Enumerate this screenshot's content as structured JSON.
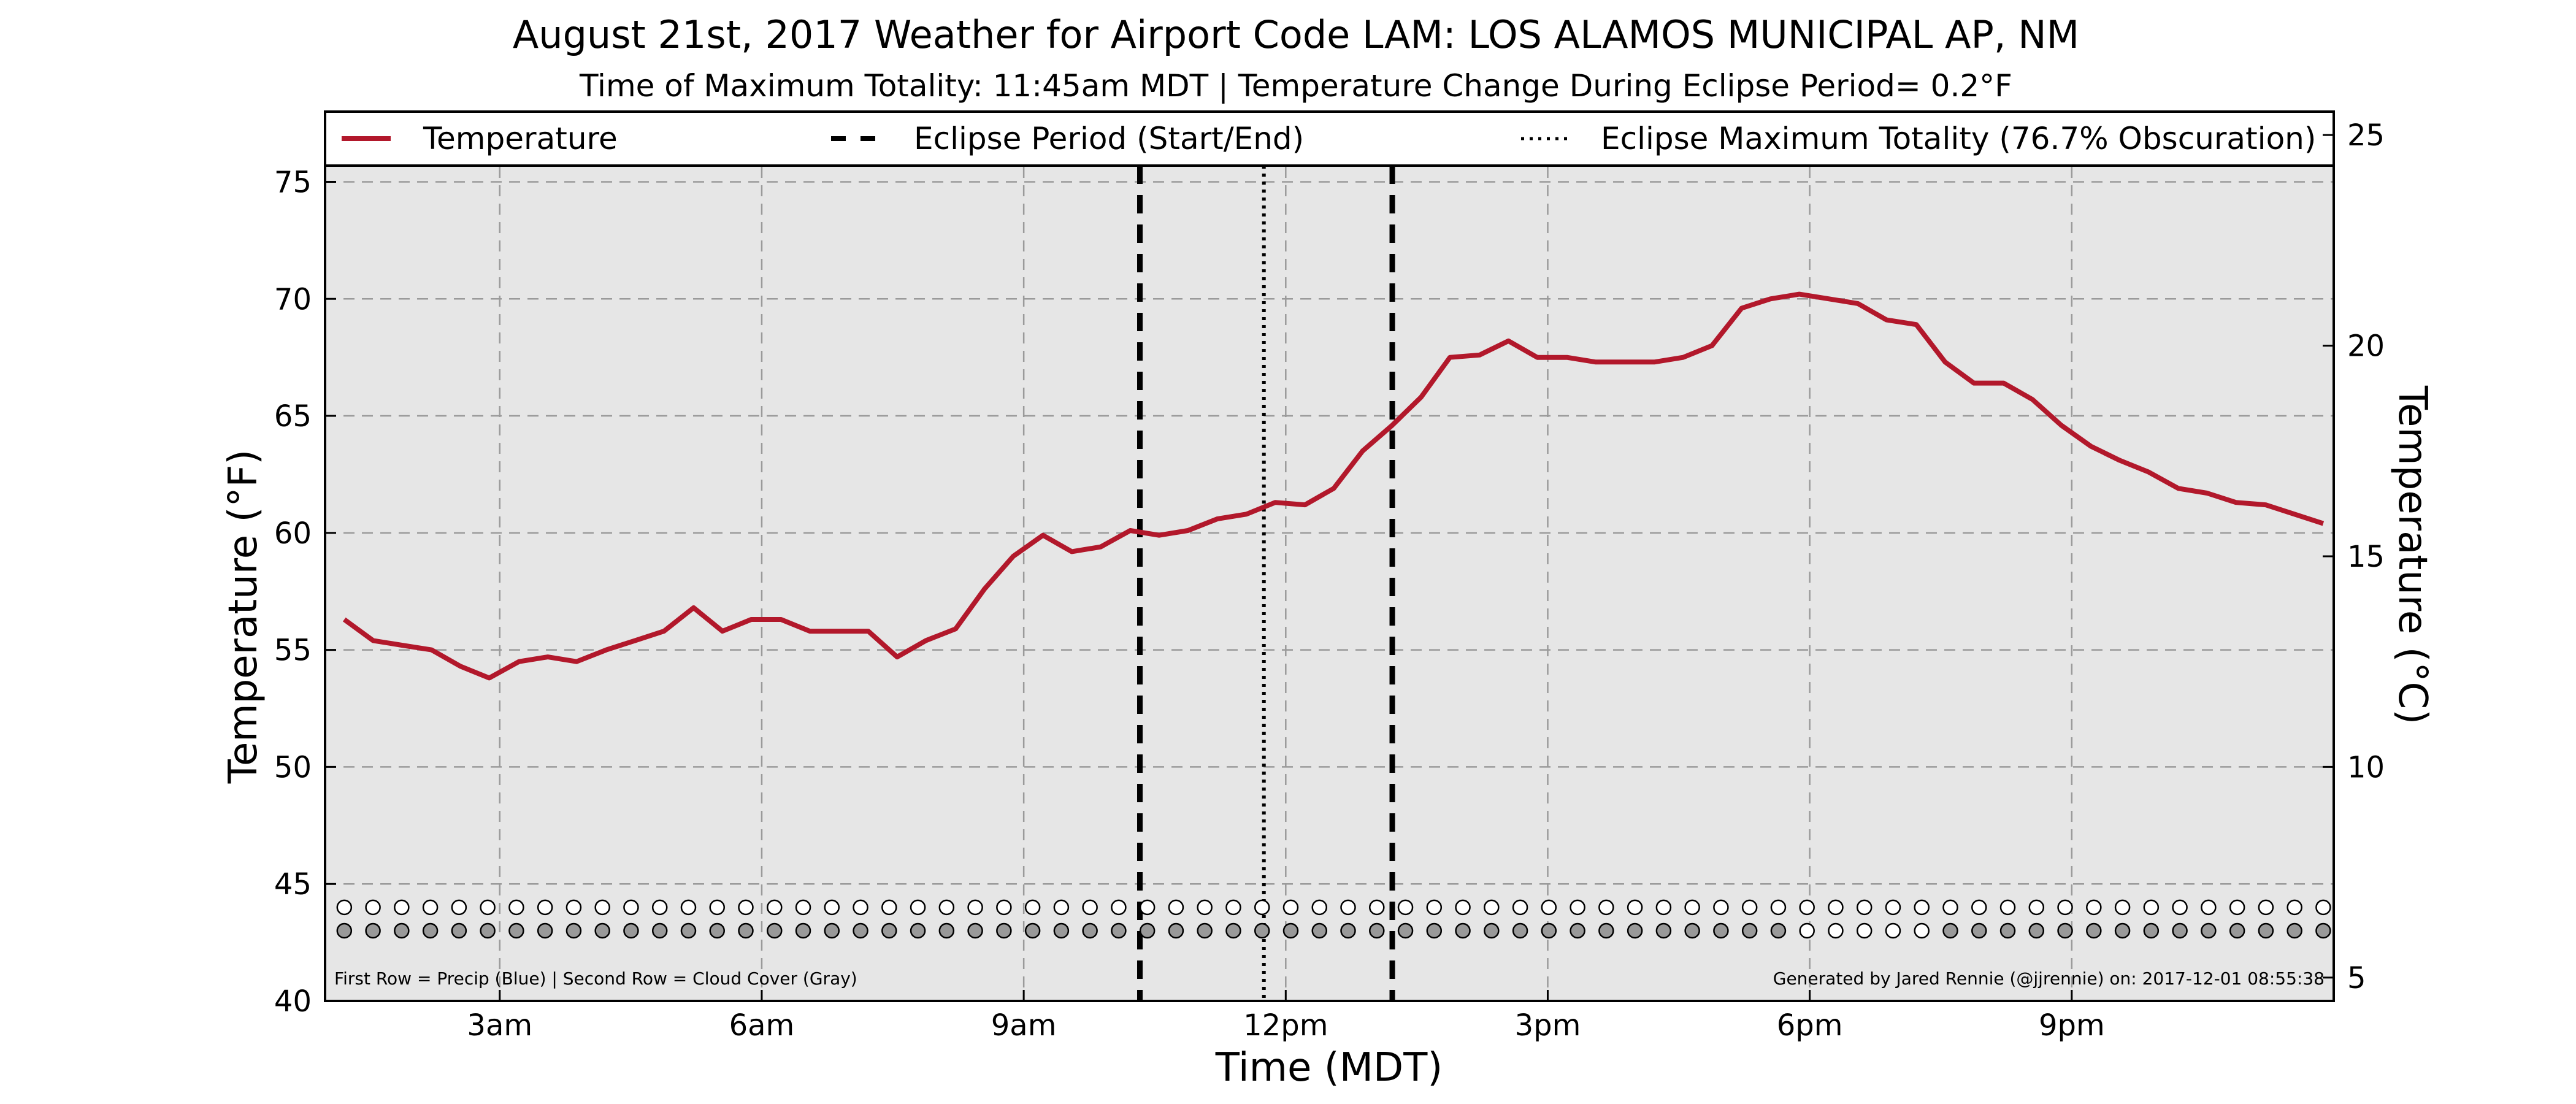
{
  "title": "August 21st, 2017 Weather for Airport Code LAM: LOS ALAMOS MUNICIPAL AP, NM",
  "subtitle": "Time of Maximum Totality: 11:45am MDT | Temperature Change During Eclipse Period= 0.2°F",
  "footer_left": "First Row = Precip (Blue) | Second Row = Cloud Cover (Gray)",
  "footer_right": "Generated by Jared Rennie (@jjrennie) on: 2017-12-01 08:55:38",
  "colors": {
    "temperature": "#b2182b",
    "plot_background": "#e6e6e6",
    "cloud_gray": "#999999",
    "precip_empty": "#ffffff"
  },
  "chart_data": {
    "type": "line",
    "xlabel": "Time (MDT)",
    "ylabel": "Temperature (°F)",
    "ylabel_right": "Temperature (°C)",
    "xlim": [
      1.0,
      24.0
    ],
    "ylim": [
      40,
      78
    ],
    "x_ticks": [
      {
        "x": 3,
        "label": "3am"
      },
      {
        "x": 6,
        "label": "6am"
      },
      {
        "x": 9,
        "label": "9am"
      },
      {
        "x": 12,
        "label": "12pm"
      },
      {
        "x": 15,
        "label": "3pm"
      },
      {
        "x": 18,
        "label": "6pm"
      },
      {
        "x": 21,
        "label": "9pm"
      }
    ],
    "y_ticks": [
      40,
      45,
      50,
      55,
      60,
      65,
      70,
      75
    ],
    "y_right_ticks": [
      5,
      10,
      15,
      20,
      25
    ],
    "grid": true,
    "legend": {
      "placement": "top",
      "entries": [
        {
          "label": "Temperature",
          "style": "solid"
        },
        {
          "label": "Eclipse Period (Start/End)",
          "style": "dashed"
        },
        {
          "label": "Eclipse Maximum Totality (76.7% Obscuration)",
          "style": "dotted"
        }
      ]
    },
    "eclipse_start": 10.33,
    "eclipse_max": 11.75,
    "eclipse_end": 13.22,
    "series": [
      {
        "name": "Temperature",
        "x": [
          1.22,
          1.55,
          1.88,
          2.22,
          2.55,
          2.88,
          3.22,
          3.55,
          3.88,
          4.22,
          4.55,
          4.88,
          5.22,
          5.55,
          5.88,
          6.22,
          6.55,
          6.88,
          7.22,
          7.55,
          7.88,
          8.22,
          8.55,
          8.88,
          9.22,
          9.55,
          9.88,
          10.22,
          10.55,
          10.88,
          11.22,
          11.55,
          11.88,
          12.22,
          12.55,
          12.88,
          13.22,
          13.55,
          13.88,
          14.22,
          14.55,
          14.88,
          15.22,
          15.55,
          15.88,
          16.22,
          16.55,
          16.88,
          17.22,
          17.55,
          17.88,
          18.22,
          18.55,
          18.88,
          19.22,
          19.55,
          19.88,
          20.22,
          20.55,
          20.88,
          21.22,
          21.55,
          21.88,
          22.22,
          22.55,
          22.88,
          23.22,
          23.55,
          23.88
        ],
        "values": [
          56.3,
          55.4,
          55.2,
          55.0,
          54.3,
          53.8,
          54.5,
          54.7,
          54.5,
          55.0,
          55.4,
          55.8,
          56.8,
          55.8,
          56.3,
          56.3,
          55.8,
          55.8,
          55.8,
          54.7,
          55.4,
          55.9,
          57.6,
          59.0,
          59.9,
          59.2,
          59.4,
          60.1,
          59.9,
          60.1,
          60.6,
          60.8,
          61.3,
          61.2,
          61.9,
          63.5,
          64.6,
          65.8,
          67.5,
          67.6,
          68.2,
          67.5,
          67.5,
          67.3,
          67.3,
          67.3,
          67.5,
          68.0,
          69.6,
          70.0,
          70.2,
          70.0,
          69.8,
          69.1,
          68.9,
          67.3,
          66.4,
          66.4,
          65.7,
          64.6,
          63.7,
          63.1,
          62.6,
          61.9,
          61.7,
          61.3,
          61.2,
          60.8,
          60.4
        ]
      }
    ],
    "precip_row_y": 44.0,
    "cloud_row_y": 43.0,
    "cloud_cover_filled": [
      true,
      true,
      true,
      true,
      true,
      true,
      true,
      true,
      true,
      true,
      true,
      true,
      true,
      true,
      true,
      true,
      true,
      true,
      true,
      true,
      true,
      true,
      true,
      true,
      true,
      true,
      true,
      true,
      true,
      true,
      true,
      true,
      true,
      true,
      true,
      true,
      true,
      true,
      true,
      true,
      true,
      true,
      true,
      true,
      true,
      true,
      true,
      true,
      true,
      true,
      true,
      false,
      false,
      false,
      false,
      false,
      true,
      true,
      true,
      true,
      true,
      true,
      true,
      true,
      true,
      true,
      true,
      true,
      true
    ]
  }
}
